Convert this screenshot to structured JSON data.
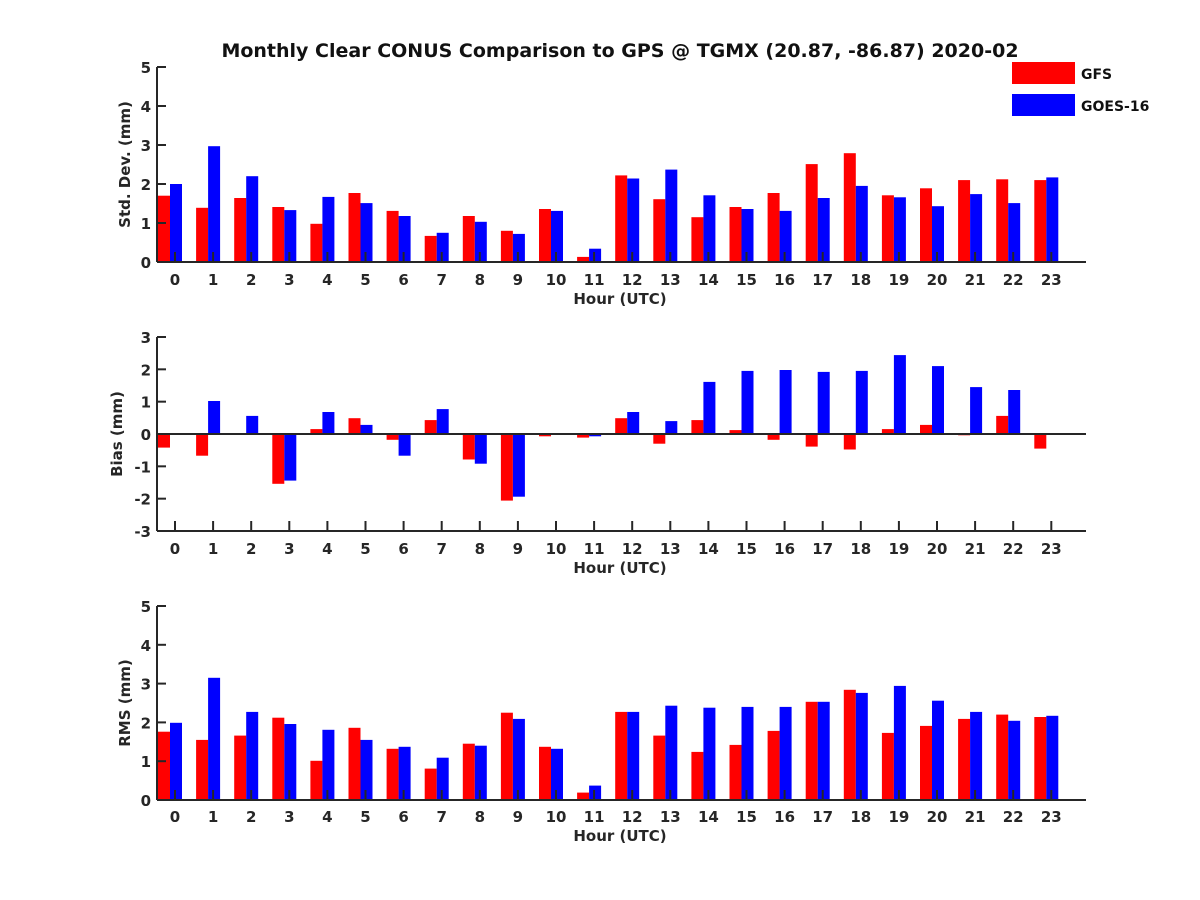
{
  "figure": {
    "title": "Monthly Clear CONUS Comparison to GPS @ TGMX (20.87, -86.87) 2020-02"
  },
  "legend": {
    "placement": "top-right",
    "items": [
      {
        "label": "GFS",
        "color": "#ff0000"
      },
      {
        "label": "GOES-16",
        "color": "#0000ff"
      }
    ]
  },
  "chart_data": [
    {
      "type": "bar",
      "title": "Monthly Clear CONUS Comparison to GPS @ TGMX (20.87, -86.87) 2020-02",
      "xlabel": "Hour (UTC)",
      "ylabel": "Std. Dev. (mm)",
      "ylim": [
        0,
        5
      ],
      "yticks": [
        0,
        1,
        2,
        3,
        4,
        5
      ],
      "grid": false,
      "categories": [
        "0",
        "1",
        "2",
        "3",
        "4",
        "5",
        "6",
        "7",
        "8",
        "9",
        "10",
        "11",
        "12",
        "13",
        "14",
        "15",
        "16",
        "17",
        "18",
        "19",
        "20",
        "21",
        "22",
        "23"
      ],
      "series": [
        {
          "name": "GFS",
          "color": "#ff0000",
          "values": [
            1.7,
            1.39,
            1.64,
            1.41,
            0.98,
            1.77,
            1.31,
            0.67,
            1.18,
            0.8,
            1.36,
            0.13,
            2.22,
            1.61,
            1.15,
            1.41,
            1.77,
            2.51,
            2.79,
            1.71,
            1.89,
            2.1,
            2.12,
            2.1
          ]
        },
        {
          "name": "GOES-16",
          "color": "#0000ff",
          "values": [
            2.0,
            2.97,
            2.2,
            1.33,
            1.67,
            1.51,
            1.18,
            0.75,
            1.03,
            0.72,
            1.31,
            0.34,
            2.14,
            2.37,
            1.71,
            1.36,
            1.31,
            1.64,
            1.95,
            1.66,
            1.43,
            1.74,
            1.51,
            2.17
          ]
        }
      ]
    },
    {
      "type": "bar",
      "title": "",
      "xlabel": "Hour (UTC)",
      "ylabel": "Bias (mm)",
      "ylim": [
        -3,
        3
      ],
      "yticks": [
        -3,
        -2,
        -1,
        0,
        1,
        2,
        3
      ],
      "grid": false,
      "zero_line": true,
      "categories": [
        "0",
        "1",
        "2",
        "3",
        "4",
        "5",
        "6",
        "7",
        "8",
        "9",
        "10",
        "11",
        "12",
        "13",
        "14",
        "15",
        "16",
        "17",
        "18",
        "19",
        "20",
        "21",
        "22",
        "23"
      ],
      "series": [
        {
          "name": "GFS",
          "color": "#ff0000",
          "values": [
            -0.42,
            -0.67,
            0.0,
            -1.54,
            0.15,
            0.49,
            -0.18,
            0.43,
            -0.79,
            -2.06,
            -0.07,
            -0.11,
            0.49,
            -0.3,
            0.43,
            0.12,
            -0.18,
            -0.39,
            -0.48,
            0.15,
            0.28,
            -0.04,
            0.56,
            -0.45
          ]
        },
        {
          "name": "GOES-16",
          "color": "#0000ff",
          "values": [
            0.0,
            1.02,
            0.56,
            -1.44,
            0.68,
            0.28,
            -0.67,
            0.77,
            -0.92,
            -1.94,
            -0.03,
            -0.07,
            0.68,
            0.4,
            1.61,
            1.95,
            1.98,
            1.92,
            1.95,
            2.44,
            2.1,
            1.45,
            1.36,
            0.0
          ]
        }
      ]
    },
    {
      "type": "bar",
      "title": "",
      "xlabel": "Hour (UTC)",
      "ylabel": "RMS (mm)",
      "ylim": [
        0,
        5
      ],
      "yticks": [
        0,
        1,
        2,
        3,
        4,
        5
      ],
      "grid": false,
      "categories": [
        "0",
        "1",
        "2",
        "3",
        "4",
        "5",
        "6",
        "7",
        "8",
        "9",
        "10",
        "11",
        "12",
        "13",
        "14",
        "15",
        "16",
        "17",
        "18",
        "19",
        "20",
        "21",
        "22",
        "23"
      ],
      "series": [
        {
          "name": "GFS",
          "color": "#ff0000",
          "values": [
            1.76,
            1.55,
            1.66,
            2.12,
            1.01,
            1.86,
            1.32,
            0.81,
            1.45,
            2.25,
            1.37,
            0.19,
            2.27,
            1.66,
            1.24,
            1.42,
            1.78,
            2.53,
            2.84,
            1.73,
            1.91,
            2.09,
            2.2,
            2.14
          ]
        },
        {
          "name": "GOES-16",
          "color": "#0000ff",
          "values": [
            1.99,
            3.15,
            2.27,
            1.96,
            1.81,
            1.55,
            1.37,
            1.09,
            1.4,
            2.09,
            1.32,
            0.37,
            2.27,
            2.43,
            2.38,
            2.4,
            2.4,
            2.53,
            2.76,
            2.94,
            2.56,
            2.27,
            2.04,
            2.17
          ]
        }
      ]
    }
  ]
}
